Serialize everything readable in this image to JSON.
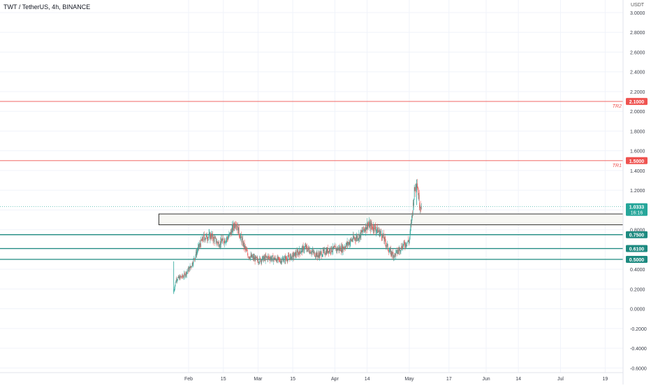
{
  "chart_title": "TWT / TetherUS, 4h, BINANCE",
  "price_unit": "USDT",
  "colors": {
    "up": "#26a69a",
    "down": "#ef5350",
    "resistance": "#ef5350",
    "support": "#1d8a80",
    "current": "#26a69a",
    "zone_fill": "#f7f7f3",
    "grid": "#f0f3fa",
    "axis_text": "#3b3f4a"
  },
  "chart_data": {
    "type": "candlestick",
    "title": "TWT / TetherUS, 4h, BINANCE",
    "interval": "4h",
    "exchange": "BINANCE",
    "ylim": [
      -0.65,
      3.08
    ],
    "y_ticks": [
      "3.0000",
      "2.8000",
      "2.6000",
      "2.4000",
      "2.2000",
      "2.0000",
      "1.8000",
      "1.6000",
      "1.4000",
      "1.2000",
      "1.0000",
      "0.8000",
      "0.6000",
      "0.4000",
      "0.2000",
      "0.0000",
      "-0.2000",
      "-0.4000",
      "-0.6000"
    ],
    "x_ticks": [
      {
        "date": "2021-02-01",
        "label": "Feb"
      },
      {
        "date": "2021-02-15",
        "label": "15"
      },
      {
        "date": "2021-03-01",
        "label": "Mar"
      },
      {
        "date": "2021-03-15",
        "label": "15"
      },
      {
        "date": "2021-04-01",
        "label": "Apr"
      },
      {
        "date": "2021-04-14",
        "label": "14"
      },
      {
        "date": "2021-05-01",
        "label": "May"
      },
      {
        "date": "2021-05-17",
        "label": "17"
      },
      {
        "date": "2021-06-01",
        "label": "Jun"
      },
      {
        "date": "2021-06-14",
        "label": "14"
      },
      {
        "date": "2021-07-01",
        "label": "Jul"
      },
      {
        "date": "2021-07-19",
        "label": "19"
      }
    ],
    "horizontal_levels": [
      {
        "value": 2.1,
        "label": "2.1000",
        "kind": "resistance",
        "text": "TR2"
      },
      {
        "value": 1.5,
        "label": "1.5000",
        "kind": "resistance",
        "text": "TR1"
      },
      {
        "value": 0.75,
        "label": "0.7500",
        "kind": "support",
        "text": ""
      },
      {
        "value": 0.61,
        "label": "0.6100",
        "kind": "support",
        "text": ""
      },
      {
        "value": 0.5,
        "label": "0.5000",
        "kind": "support",
        "text": ""
      }
    ],
    "current_price": {
      "value": 1.0333,
      "label": "1.0333",
      "countdown": "16:16"
    },
    "zone": {
      "from": "2021-01-20",
      "to": "2021-07-31",
      "low": 0.85,
      "high": 0.96
    },
    "price_path": [
      {
        "date": "2021-01-26",
        "close": 0.18
      },
      {
        "date": "2021-01-27",
        "close": 0.3
      },
      {
        "date": "2021-01-30",
        "close": 0.33
      },
      {
        "date": "2021-02-02",
        "close": 0.43
      },
      {
        "date": "2021-02-05",
        "close": 0.62
      },
      {
        "date": "2021-02-07",
        "close": 0.72
      },
      {
        "date": "2021-02-10",
        "close": 0.74
      },
      {
        "date": "2021-02-13",
        "close": 0.66
      },
      {
        "date": "2021-02-17",
        "close": 0.72
      },
      {
        "date": "2021-02-20",
        "close": 0.88
      },
      {
        "date": "2021-02-22",
        "close": 0.72
      },
      {
        "date": "2021-02-25",
        "close": 0.54
      },
      {
        "date": "2021-03-01",
        "close": 0.49
      },
      {
        "date": "2021-03-05",
        "close": 0.52
      },
      {
        "date": "2021-03-10",
        "close": 0.49
      },
      {
        "date": "2021-03-15",
        "close": 0.53
      },
      {
        "date": "2021-03-20",
        "close": 0.62
      },
      {
        "date": "2021-03-25",
        "close": 0.54
      },
      {
        "date": "2021-03-30",
        "close": 0.6
      },
      {
        "date": "2021-04-04",
        "close": 0.61
      },
      {
        "date": "2021-04-08",
        "close": 0.7
      },
      {
        "date": "2021-04-11",
        "close": 0.74
      },
      {
        "date": "2021-04-14",
        "close": 0.85
      },
      {
        "date": "2021-04-17",
        "close": 0.82
      },
      {
        "date": "2021-04-20",
        "close": 0.75
      },
      {
        "date": "2021-04-23",
        "close": 0.58
      },
      {
        "date": "2021-04-25",
        "close": 0.54
      },
      {
        "date": "2021-04-28",
        "close": 0.63
      },
      {
        "date": "2021-05-01",
        "close": 0.69
      },
      {
        "date": "2021-05-02",
        "close": 0.92
      },
      {
        "date": "2021-05-03",
        "close": 1.18
      },
      {
        "date": "2021-05-04",
        "close": 1.31
      },
      {
        "date": "2021-05-05",
        "close": 1.08
      },
      {
        "date": "2021-05-06",
        "close": 1.03
      }
    ]
  }
}
